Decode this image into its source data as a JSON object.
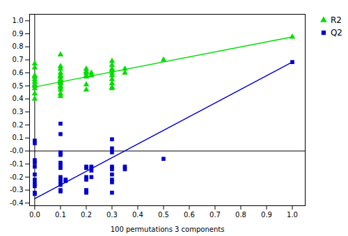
{
  "chart_data": {
    "type": "scatter",
    "title": "",
    "xlabel": "100 permutations 3 components",
    "xlim": [
      -0.02,
      1.05
    ],
    "ylim": [
      -0.42,
      1.05
    ],
    "xticks": [
      {
        "value": 0.0,
        "label": "0.0"
      },
      0.1,
      0.2,
      0.3,
      0.4,
      0.5,
      0.6,
      0.7,
      0.8,
      0.9,
      {
        "value": 1.0,
        "label": "1.0"
      }
    ],
    "yticks": [
      -0.4,
      -0.3,
      -0.2,
      -0.1,
      {
        "value": 0.0,
        "label": "-0.0"
      },
      0.1,
      0.2,
      0.3,
      0.4,
      0.5,
      0.6,
      0.7,
      0.8,
      0.9,
      {
        "value": 1.0,
        "label": "1.0"
      }
    ],
    "grid": false,
    "legend": "upper right",
    "hlines": [
      0
    ],
    "vlines": [
      0
    ],
    "series": [
      {
        "name": "R2",
        "color": "#00dd00",
        "marker": "triangle",
        "fit_line": [
          [
            0.0,
            0.492
          ],
          [
            1.0,
            0.876
          ]
        ],
        "values": [
          [
            0.0,
            0.5
          ],
          [
            0.0,
            0.48
          ],
          [
            0.0,
            0.58
          ],
          [
            0.0,
            0.64
          ],
          [
            0.0,
            0.67
          ],
          [
            0.0,
            0.57
          ],
          [
            0.0,
            0.55
          ],
          [
            0.0,
            0.53
          ],
          [
            0.0,
            0.51
          ],
          [
            0.0,
            0.44
          ],
          [
            0.0,
            0.4
          ],
          [
            0.1,
            0.74
          ],
          [
            0.1,
            0.65
          ],
          [
            0.1,
            0.63
          ],
          [
            0.1,
            0.6
          ],
          [
            0.1,
            0.58
          ],
          [
            0.1,
            0.57
          ],
          [
            0.1,
            0.55
          ],
          [
            0.1,
            0.54
          ],
          [
            0.1,
            0.53
          ],
          [
            0.1,
            0.52
          ],
          [
            0.1,
            0.5
          ],
          [
            0.1,
            0.49
          ],
          [
            0.1,
            0.47
          ],
          [
            0.1,
            0.44
          ],
          [
            0.1,
            0.42
          ],
          [
            0.2,
            0.63
          ],
          [
            0.2,
            0.61
          ],
          [
            0.2,
            0.6
          ],
          [
            0.2,
            0.58
          ],
          [
            0.2,
            0.57
          ],
          [
            0.2,
            0.51
          ],
          [
            0.2,
            0.47
          ],
          [
            0.22,
            0.6
          ],
          [
            0.22,
            0.58
          ],
          [
            0.3,
            0.69
          ],
          [
            0.3,
            0.66
          ],
          [
            0.3,
            0.63
          ],
          [
            0.3,
            0.62
          ],
          [
            0.3,
            0.6
          ],
          [
            0.3,
            0.58
          ],
          [
            0.3,
            0.55
          ],
          [
            0.3,
            0.52
          ],
          [
            0.3,
            0.49
          ],
          [
            0.3,
            0.48
          ],
          [
            0.35,
            0.63
          ],
          [
            0.35,
            0.6
          ],
          [
            0.5,
            0.7
          ],
          [
            1.0,
            0.876
          ]
        ]
      },
      {
        "name": "Q2",
        "color": "#0000cc",
        "marker": "square",
        "fit_line": [
          [
            0.0,
            -0.366
          ],
          [
            1.0,
            0.683
          ]
        ],
        "values": [
          [
            0.0,
            0.08
          ],
          [
            0.0,
            0.06
          ],
          [
            0.0,
            -0.07
          ],
          [
            0.0,
            -0.09
          ],
          [
            0.0,
            -0.12
          ],
          [
            0.0,
            -0.18
          ],
          [
            0.0,
            -0.22
          ],
          [
            0.0,
            -0.25
          ],
          [
            0.0,
            -0.27
          ],
          [
            0.0,
            -0.32
          ],
          [
            0.0,
            -0.33
          ],
          [
            0.1,
            0.21
          ],
          [
            0.1,
            0.13
          ],
          [
            0.1,
            -0.01
          ],
          [
            0.1,
            -0.02
          ],
          [
            0.1,
            -0.03
          ],
          [
            0.1,
            -0.09
          ],
          [
            0.1,
            -0.11
          ],
          [
            0.1,
            -0.13
          ],
          [
            0.1,
            -0.2
          ],
          [
            0.1,
            -0.22
          ],
          [
            0.1,
            -0.24
          ],
          [
            0.1,
            -0.26
          ],
          [
            0.1,
            -0.3
          ],
          [
            0.1,
            -0.31
          ],
          [
            0.12,
            -0.22
          ],
          [
            0.12,
            -0.23
          ],
          [
            0.2,
            -0.12
          ],
          [
            0.2,
            -0.13
          ],
          [
            0.2,
            -0.2
          ],
          [
            0.2,
            -0.22
          ],
          [
            0.2,
            -0.3
          ],
          [
            0.2,
            -0.31
          ],
          [
            0.2,
            -0.32
          ],
          [
            0.22,
            -0.12
          ],
          [
            0.22,
            -0.13
          ],
          [
            0.22,
            -0.15
          ],
          [
            0.22,
            -0.2
          ],
          [
            0.3,
            0.09
          ],
          [
            0.3,
            0.02
          ],
          [
            0.3,
            -0.01
          ],
          [
            0.3,
            -0.12
          ],
          [
            0.3,
            -0.14
          ],
          [
            0.3,
            -0.18
          ],
          [
            0.3,
            -0.22
          ],
          [
            0.3,
            -0.24
          ],
          [
            0.3,
            -0.32
          ],
          [
            0.35,
            -0.12
          ],
          [
            0.35,
            -0.14
          ],
          [
            0.5,
            -0.06
          ],
          [
            1.0,
            0.683
          ]
        ]
      }
    ]
  }
}
